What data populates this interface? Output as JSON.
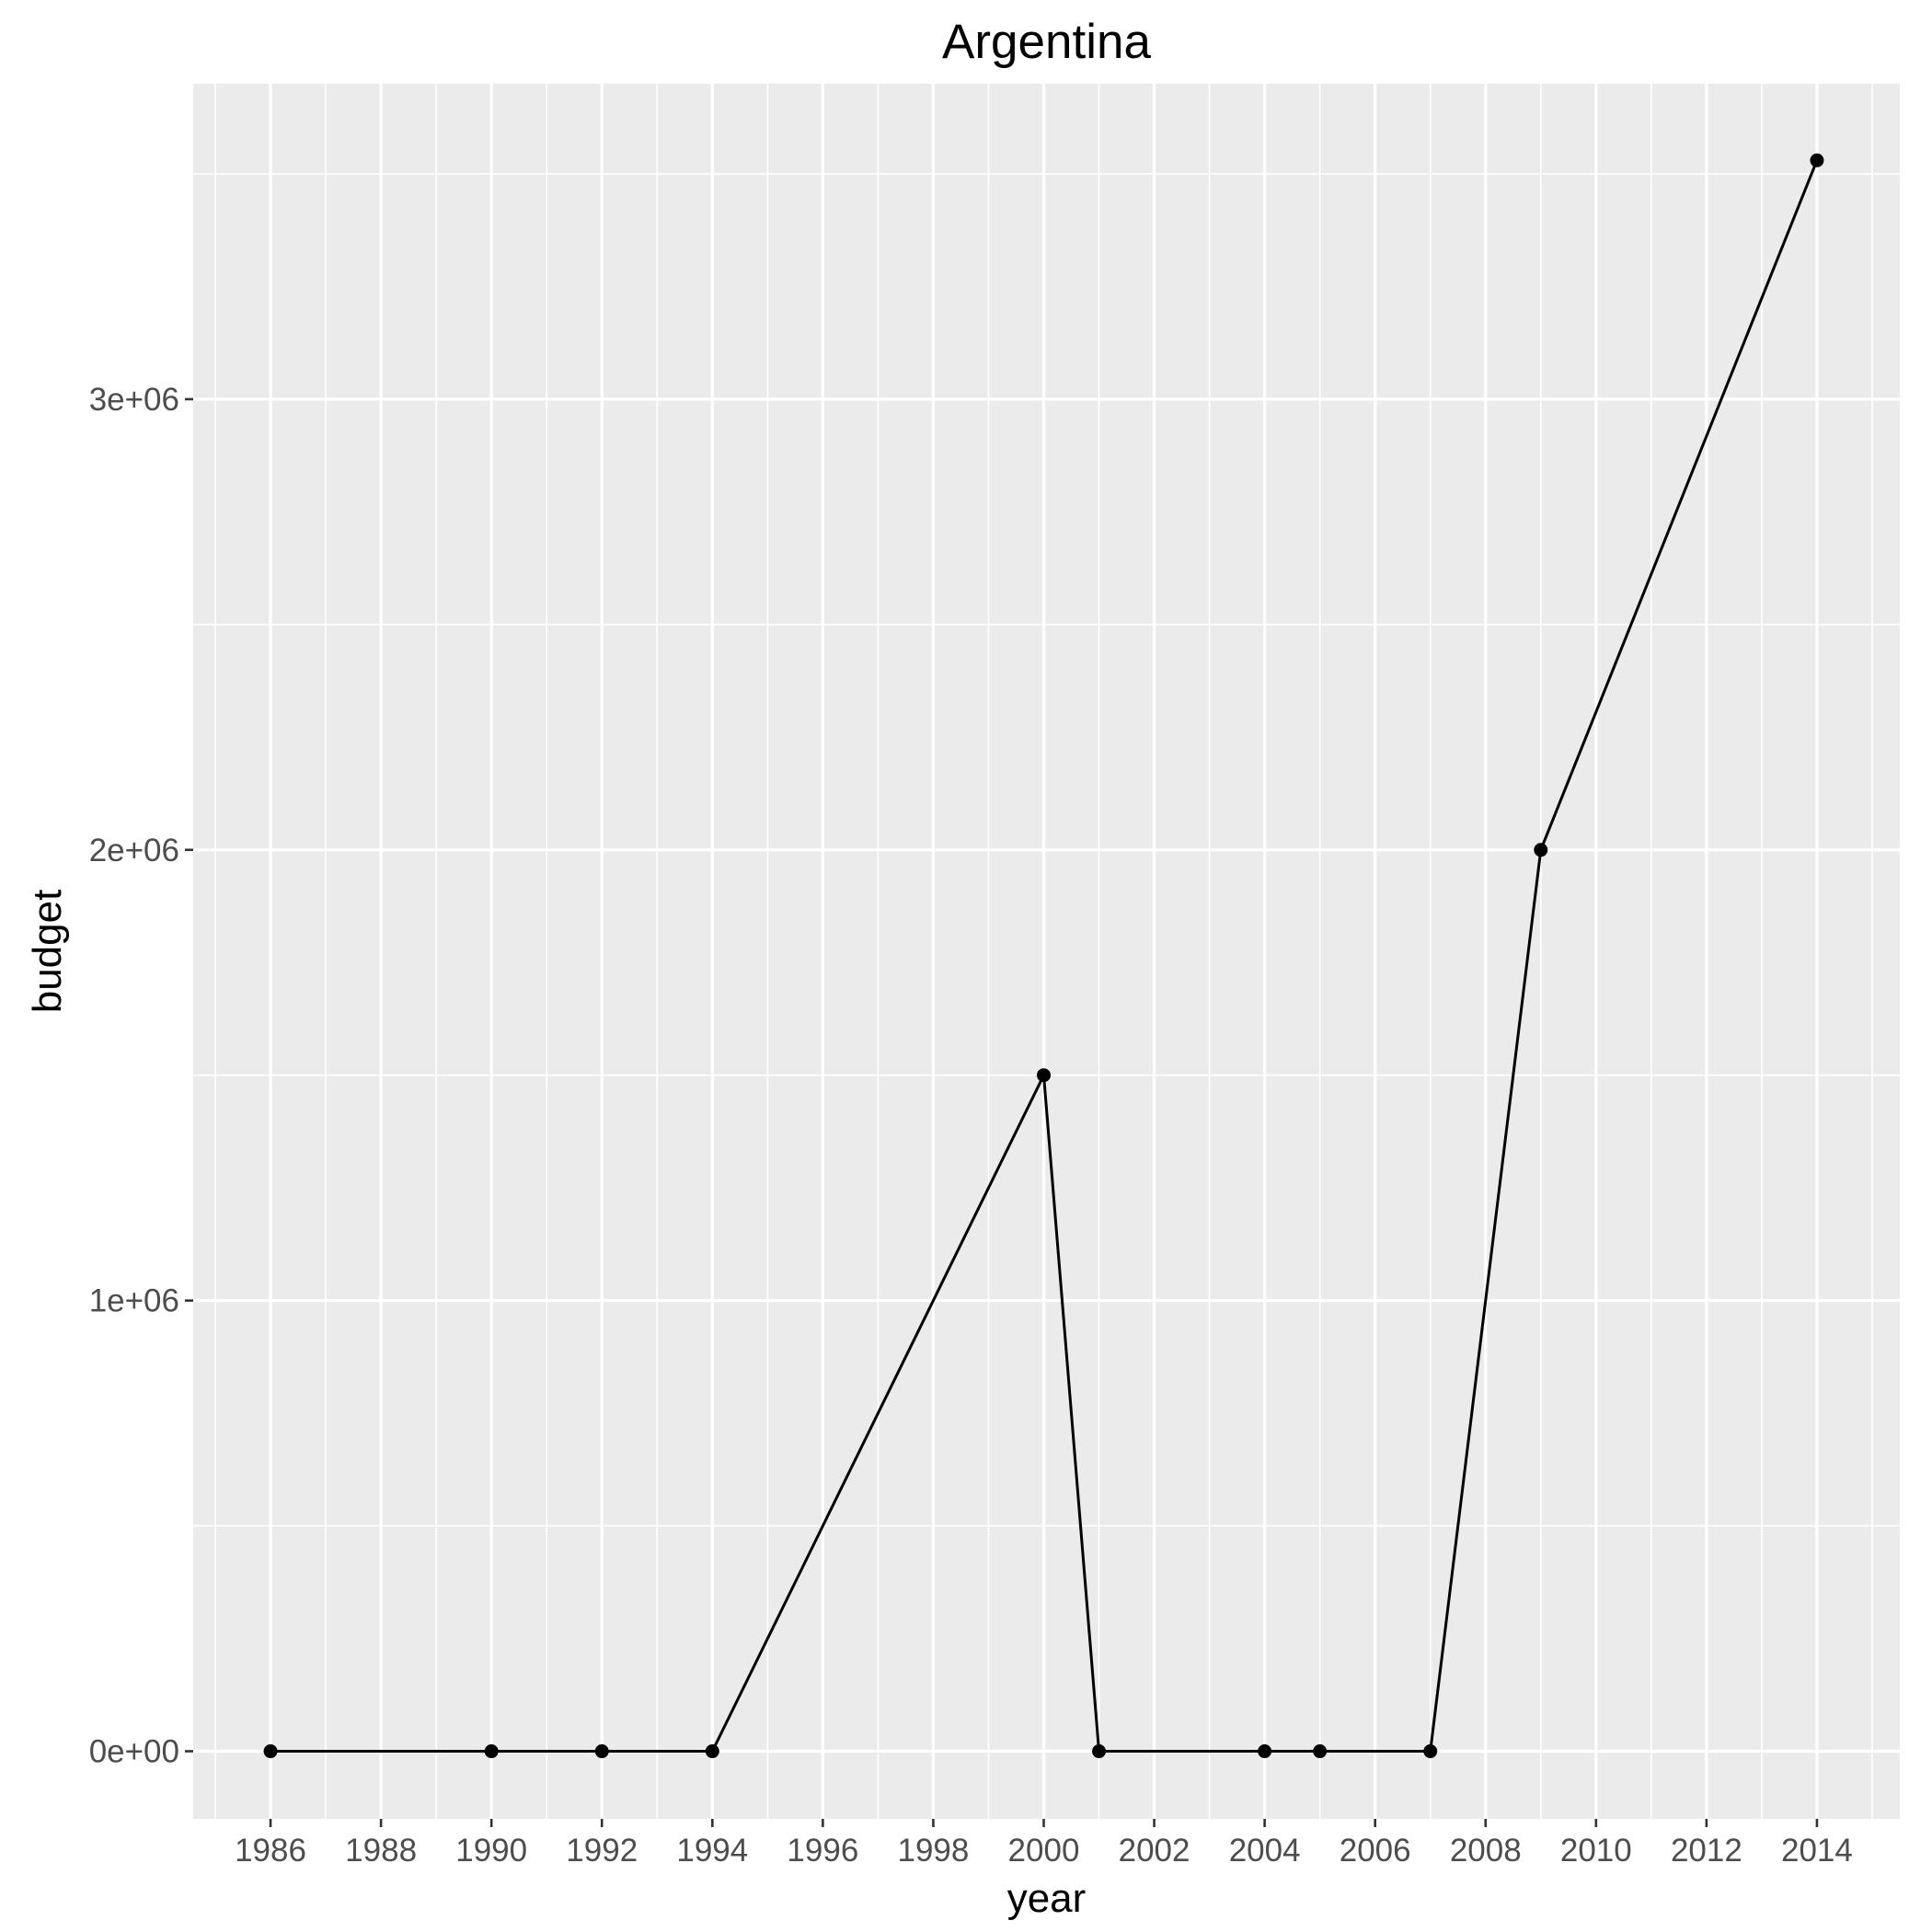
{
  "chart_data": {
    "type": "line",
    "title": "Argentina",
    "xlabel": "year",
    "ylabel": "budget",
    "x": [
      1986,
      1990,
      1992,
      1994,
      2000,
      2001,
      2004,
      2005,
      2007,
      2009,
      2014
    ],
    "series": [
      {
        "values": [
          0,
          0,
          0,
          0,
          1500000,
          0,
          0,
          0,
          0,
          2000000,
          3530000
        ],
        "color": "#000000"
      }
    ],
    "xlim": [
      1984.6,
      2015.5
    ],
    "ylim": [
      -150000,
      3700000
    ],
    "x_ticks": [
      {
        "value": 1986,
        "label": "1986"
      },
      {
        "value": 1988,
        "label": "1988"
      },
      {
        "value": 1990,
        "label": "1990"
      },
      {
        "value": 1992,
        "label": "1992"
      },
      {
        "value": 1994,
        "label": "1994"
      },
      {
        "value": 1996,
        "label": "1996"
      },
      {
        "value": 1998,
        "label": "1998"
      },
      {
        "value": 2000,
        "label": "2000"
      },
      {
        "value": 2002,
        "label": "2002"
      },
      {
        "value": 2004,
        "label": "2004"
      },
      {
        "value": 2006,
        "label": "2006"
      },
      {
        "value": 2008,
        "label": "2008"
      },
      {
        "value": 2010,
        "label": "2010"
      },
      {
        "value": 2012,
        "label": "2012"
      },
      {
        "value": 2014,
        "label": "2014"
      }
    ],
    "y_ticks": [
      {
        "value": 0,
        "label": "0e+00"
      },
      {
        "value": 1000000,
        "label": "1e+06"
      },
      {
        "value": 2000000,
        "label": "2e+06"
      },
      {
        "value": 3000000,
        "label": "3e+06"
      }
    ],
    "grid": true,
    "legend": "none",
    "colors": {
      "panel_background": "#ebebeb",
      "grid": "#ffffff",
      "tick_label": "#4d4d4d",
      "tick_mark": "#333333",
      "line": "#000000"
    }
  }
}
